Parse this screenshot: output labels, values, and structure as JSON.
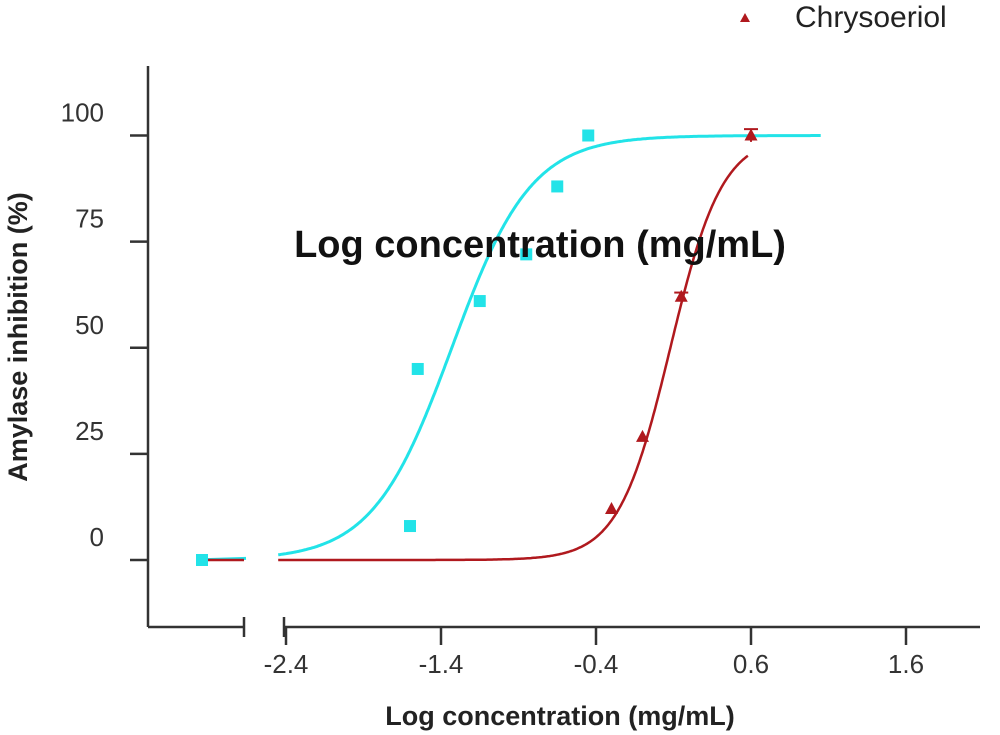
{
  "chart_data": {
    "type": "scatter",
    "overlay_text": "Log concentration (mg/mL)",
    "xlabel": "Log concentration (mg/mL)",
    "ylabel": "Amylase inhibition (%)",
    "x_ticks": [
      -2.4,
      -1.4,
      -0.4,
      0.6,
      1.6
    ],
    "x_tick_labels": [
      "-2.4",
      "-1.4",
      "-0.4",
      "0.6",
      "1.6"
    ],
    "y_ticks": [
      0,
      25,
      50,
      75,
      100
    ],
    "y_tick_labels": [
      "0",
      "25",
      "50",
      "75",
      "100"
    ],
    "xlim_main": [
      -2.65,
      2.0
    ],
    "x_break_left_value": -3.5,
    "ylim": [
      -15,
      115
    ],
    "legend": {
      "position": "top-right",
      "label": "Chrysoeriol"
    },
    "series": [
      {
        "name": "",
        "color": "#22e3e8",
        "marker": "square",
        "points": [
          {
            "x": -3.5,
            "y": 0
          },
          {
            "x": -1.6,
            "y": 8
          },
          {
            "x": -1.55,
            "y": 45
          },
          {
            "x": -1.15,
            "y": 61
          },
          {
            "x": -0.85,
            "y": 72
          },
          {
            "x": -0.65,
            "y": 88
          },
          {
            "x": -0.45,
            "y": 100
          }
        ],
        "fit": {
          "bottom": 0,
          "top": 100,
          "logIC50": -1.33,
          "hill": 1.7
        }
      },
      {
        "name": "Chrysoeriol",
        "color": "#b0191e",
        "marker": "triangle",
        "points": [
          {
            "x": -0.3,
            "y": 12,
            "err": 0
          },
          {
            "x": -0.1,
            "y": 29,
            "err": 0
          },
          {
            "x": 0.15,
            "y": 62,
            "err": 1
          },
          {
            "x": 0.6,
            "y": 100,
            "err": 1.5
          }
        ],
        "fit": {
          "bottom": 0,
          "top": 100,
          "logIC50": 0.08,
          "hill": 2.6,
          "x_end": 0.58
        }
      }
    ]
  }
}
